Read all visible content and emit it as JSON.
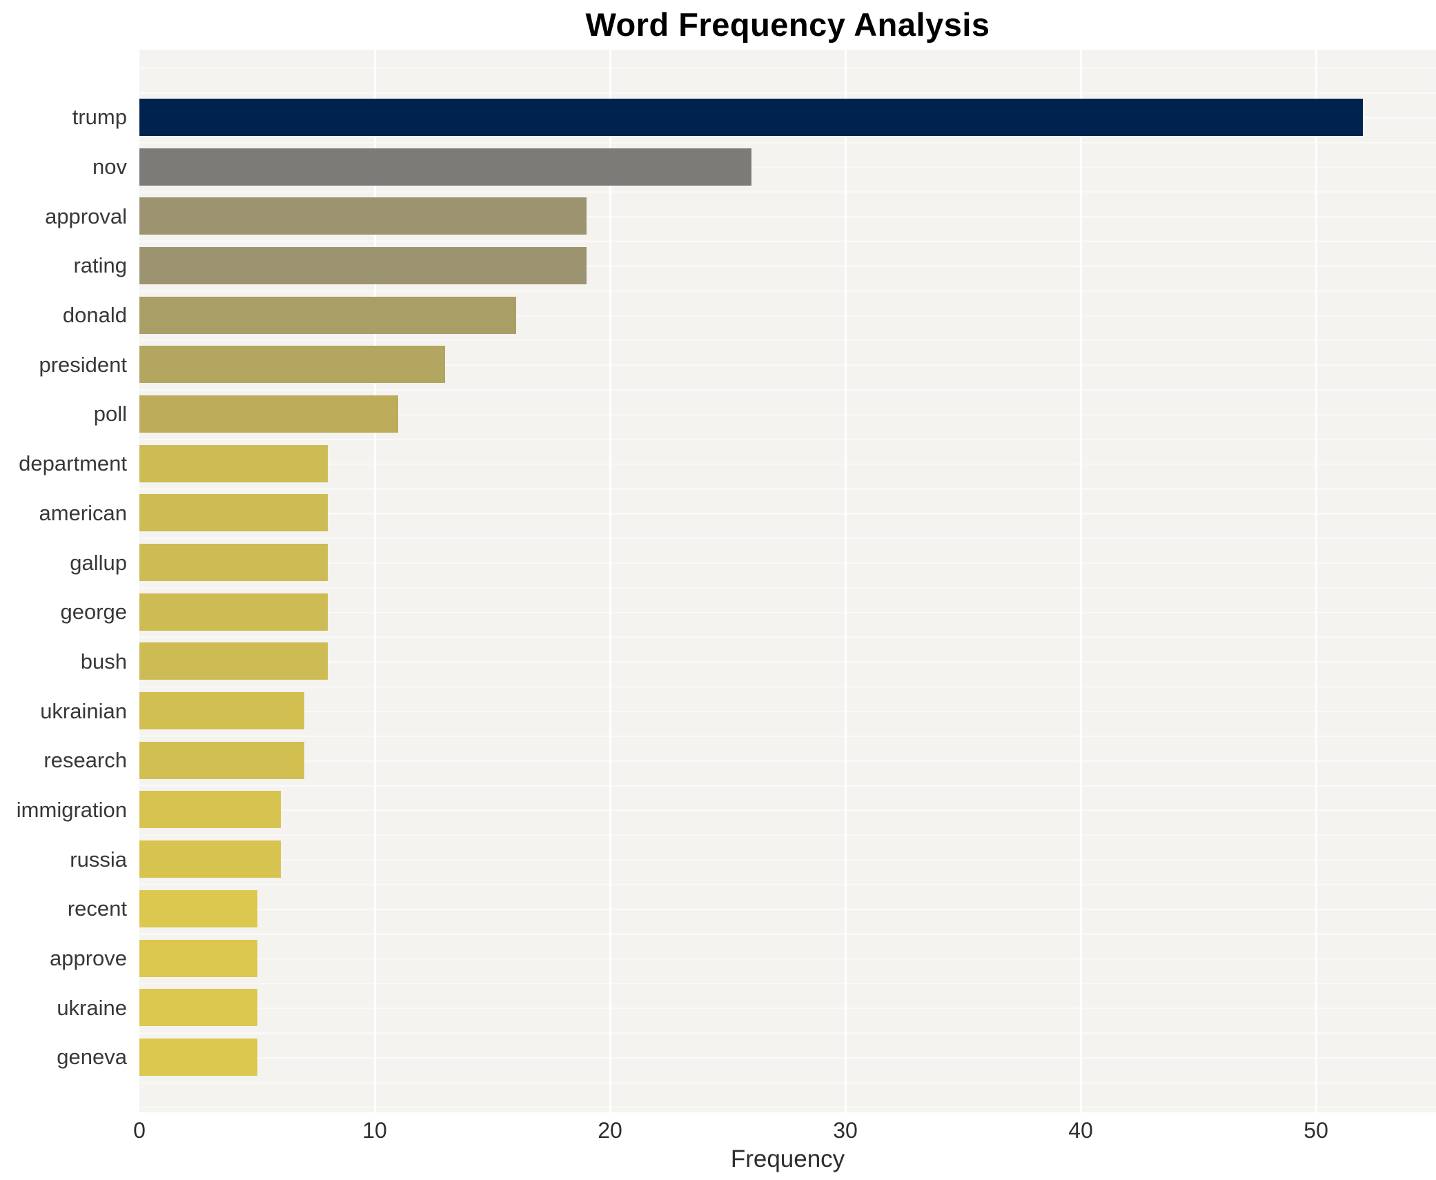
{
  "title": "Word Frequency Analysis",
  "chart_data": {
    "type": "bar",
    "orientation": "horizontal",
    "title": "Word Frequency Analysis",
    "xlabel": "Frequency",
    "ylabel": "",
    "categories": [
      "trump",
      "nov",
      "approval",
      "rating",
      "donald",
      "president",
      "poll",
      "department",
      "american",
      "gallup",
      "george",
      "bush",
      "ukrainian",
      "research",
      "immigration",
      "russia",
      "recent",
      "approve",
      "ukraine",
      "geneva"
    ],
    "values": [
      52,
      26,
      19,
      19,
      16,
      13,
      11,
      8,
      8,
      8,
      8,
      8,
      7,
      7,
      6,
      6,
      5,
      5,
      5,
      5
    ],
    "bar_colors": [
      "#00224e",
      "#7c7b78",
      "#9c9470",
      "#9c9470",
      "#a99e65",
      "#b2a660",
      "#bdac59",
      "#cdbb54",
      "#cdbb54",
      "#cdbb54",
      "#cdbb54",
      "#cdbb54",
      "#d2bf52",
      "#d2bf52",
      "#d7c450",
      "#d7c450",
      "#dcc84e",
      "#dcc84e",
      "#dcc84e",
      "#dcc84e"
    ],
    "xticks": [
      0,
      10,
      20,
      30,
      40,
      50
    ],
    "xlim": [
      0,
      55.1
    ],
    "grid": true,
    "legend": false,
    "panel_background": "#f4f3f0",
    "gridline_color": "#ffffff",
    "title_color": "#000000",
    "axis_text_color": "#2e2e2e",
    "category_text_color": "#383838"
  }
}
